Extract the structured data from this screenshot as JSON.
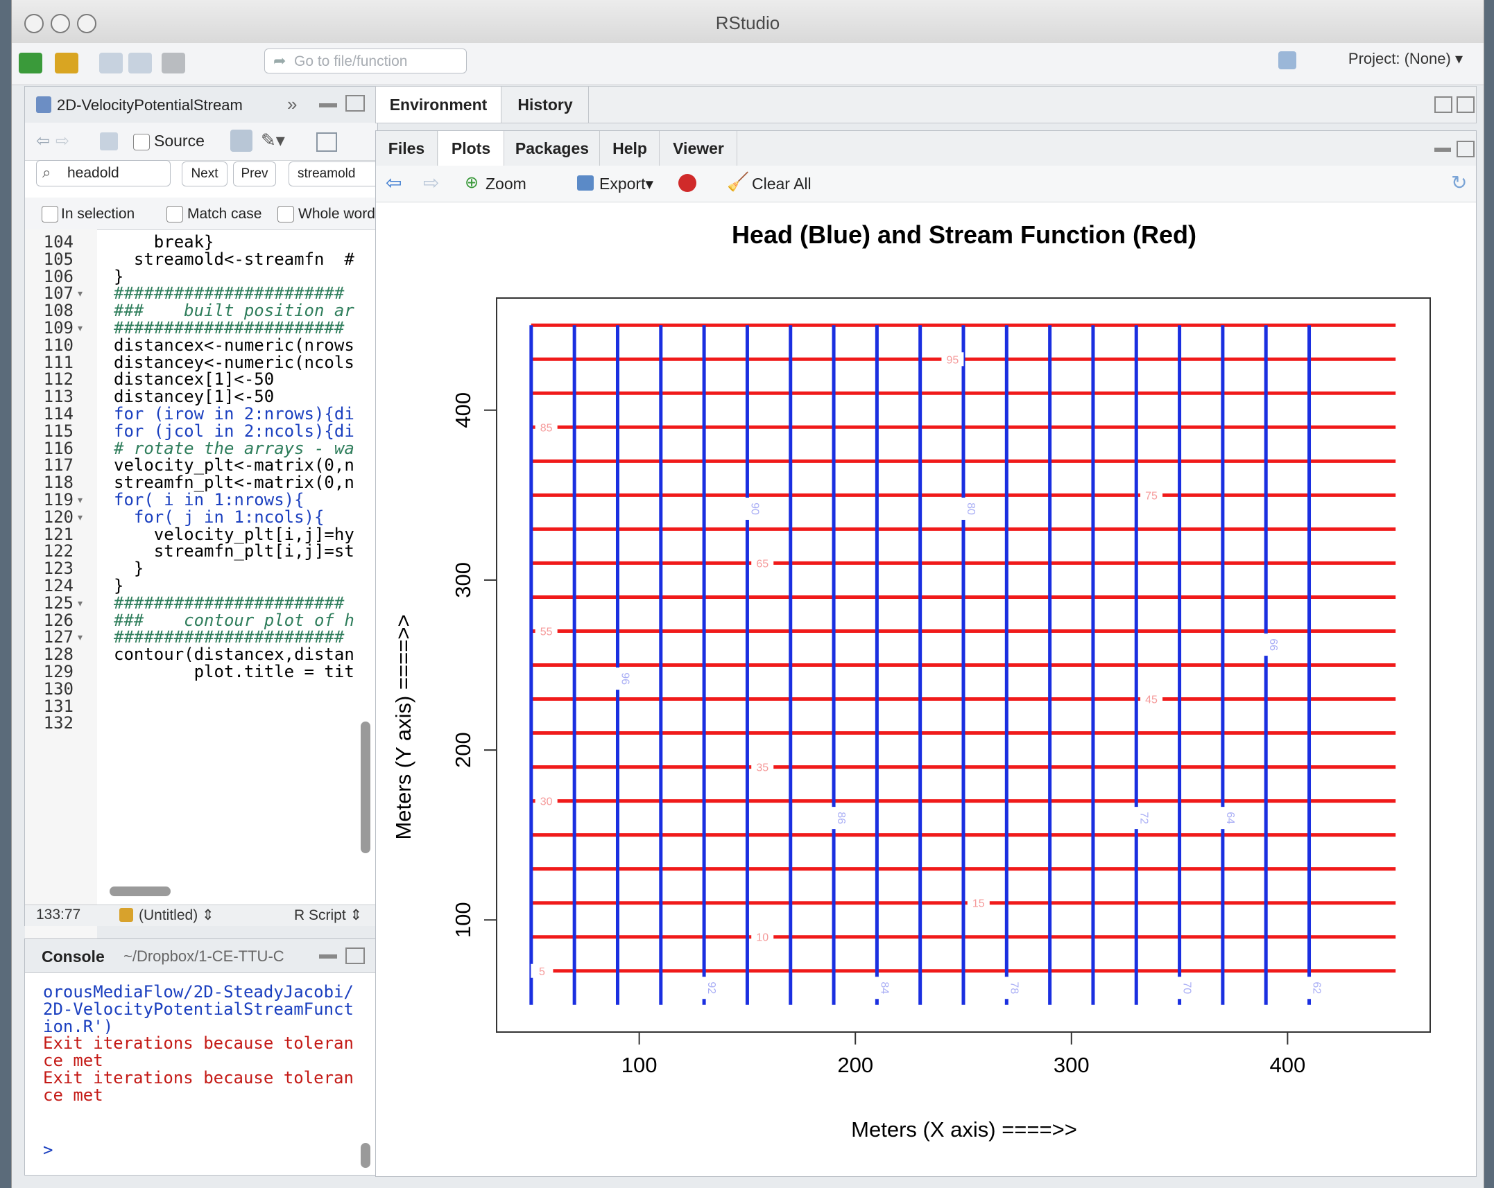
{
  "window": {
    "title": "RStudio"
  },
  "toolbar": {
    "goto_placeholder": "Go to file/function",
    "project": "Project: (None)"
  },
  "source": {
    "tab_title": "2D-VelocityPotentialStream",
    "source_label": "Source",
    "find": {
      "query": "headold",
      "next": "Next",
      "prev": "Prev",
      "replace": "streamold"
    },
    "options": {
      "in_selection": "In selection",
      "match_case": "Match case",
      "whole_word": "Whole word"
    },
    "lines": [
      {
        "n": "104",
        "text": "    break}"
      },
      {
        "n": "105",
        "text": "  streamold<-streamfn  #"
      },
      {
        "n": "106",
        "text": "}"
      },
      {
        "n": "107",
        "text": "#######################"
      },
      {
        "n": "108",
        "text": "###    built position ar"
      },
      {
        "n": "109",
        "text": "#######################"
      },
      {
        "n": "110",
        "text": "distancex<-numeric(nrows"
      },
      {
        "n": "111",
        "text": "distancey<-numeric(ncols"
      },
      {
        "n": "112",
        "text": "distancex[1]<-50"
      },
      {
        "n": "113",
        "text": "distancey[1]<-50"
      },
      {
        "n": "114",
        "text": "for (irow in 2:nrows){di"
      },
      {
        "n": "115",
        "text": "for (jcol in 2:ncols){di"
      },
      {
        "n": "116",
        "text": "# rotate the arrays - wa"
      },
      {
        "n": "117",
        "text": "velocity_plt<-matrix(0,n"
      },
      {
        "n": "118",
        "text": "streamfn_plt<-matrix(0,n"
      },
      {
        "n": "119",
        "text": "for( i in 1:nrows){"
      },
      {
        "n": "120",
        "text": "  for( j in 1:ncols){"
      },
      {
        "n": "121",
        "text": "    velocity_plt[i,j]=hy"
      },
      {
        "n": "122",
        "text": "    streamfn_plt[i,j]=st"
      },
      {
        "n": "123",
        "text": "  }"
      },
      {
        "n": "124",
        "text": "}"
      },
      {
        "n": "125",
        "text": "#######################"
      },
      {
        "n": "126",
        "text": "###    contour plot of h"
      },
      {
        "n": "127",
        "text": "#######################"
      },
      {
        "n": "128",
        "text": "contour(distancex,distan"
      },
      {
        "n": "129",
        "text": "        plot.title = tit"
      },
      {
        "n": "130",
        "text": ""
      },
      {
        "n": "131",
        "text": ""
      },
      {
        "n": "132",
        "text": ""
      }
    ],
    "status": {
      "position": "133:77",
      "context": "(Untitled)",
      "filetype": "R Script"
    }
  },
  "console": {
    "title": "Console",
    "path": "~/Dropbox/1-CE-TTU-C",
    "lines": [
      {
        "text": "orousMediaFlow/2D-SteadyJacobi/",
        "color": "#1a3fbf"
      },
      {
        "text": "2D-VelocityPotentialStreamFunct",
        "color": "#1a3fbf"
      },
      {
        "text": "ion.R')",
        "color": "#1a3fbf"
      },
      {
        "text": "Exit iterations because toleran",
        "color": "#c41a16"
      },
      {
        "text": "ce met",
        "color": "#c41a16"
      },
      {
        "text": "Exit iterations because toleran",
        "color": "#c41a16"
      },
      {
        "text": "ce met",
        "color": "#c41a16"
      }
    ],
    "prompt": ">"
  },
  "env": {
    "tabs": [
      "Environment",
      "History"
    ]
  },
  "plots": {
    "tabs": [
      "Files",
      "Plots",
      "Packages",
      "Help",
      "Viewer"
    ],
    "toolbar": {
      "zoom": "Zoom",
      "export": "Export",
      "clear": "Clear All"
    }
  },
  "chart_data": {
    "type": "contour",
    "title": "Head (Blue) and Stream Function (Red)",
    "xlabel": "Meters (X axis) ====>>",
    "ylabel": "Meters (Y axis) ====>>",
    "xlim": [
      34,
      466
    ],
    "ylim": [
      34,
      466
    ],
    "xticks": [
      100,
      200,
      300,
      400
    ],
    "yticks": [
      100,
      200,
      300,
      400
    ],
    "head_color": "#1a2fe0",
    "stream_color": "#f01a1a",
    "head_lines_x": [
      50,
      70,
      90,
      110,
      130,
      150,
      170,
      190,
      210,
      230,
      250,
      270,
      290,
      310,
      330,
      350,
      370,
      390,
      410
    ],
    "stream_lines_y": [
      70,
      90,
      110,
      130,
      150,
      170,
      190,
      210,
      230,
      250,
      270,
      290,
      310,
      330,
      350,
      370,
      390,
      410,
      430,
      450
    ],
    "head_labels": [
      {
        "x": 150,
        "y": 342,
        "text": "90"
      },
      {
        "x": 250,
        "y": 342,
        "text": "80"
      },
      {
        "x": 90,
        "y": 242,
        "text": "96"
      },
      {
        "x": 390,
        "y": 262,
        "text": "66"
      },
      {
        "x": 190,
        "y": 160,
        "text": "86"
      },
      {
        "x": 330,
        "y": 160,
        "text": "72"
      },
      {
        "x": 370,
        "y": 160,
        "text": "64"
      },
      {
        "x": 130,
        "y": 60,
        "text": "92"
      },
      {
        "x": 210,
        "y": 60,
        "text": "84"
      },
      {
        "x": 270,
        "y": 60,
        "text": "78"
      },
      {
        "x": 350,
        "y": 60,
        "text": "70"
      },
      {
        "x": 410,
        "y": 60,
        "text": "62"
      }
    ],
    "stream_labels": [
      {
        "x": 245,
        "y": 430,
        "text": "95"
      },
      {
        "x": 57,
        "y": 390,
        "text": "85"
      },
      {
        "x": 337,
        "y": 350,
        "text": "75"
      },
      {
        "x": 157,
        "y": 310,
        "text": "65"
      },
      {
        "x": 57,
        "y": 270,
        "text": "55"
      },
      {
        "x": 337,
        "y": 230,
        "text": "45"
      },
      {
        "x": 157,
        "y": 190,
        "text": "35"
      },
      {
        "x": 57,
        "y": 170,
        "text": "30"
      },
      {
        "x": 257,
        "y": 110,
        "text": "15"
      },
      {
        "x": 157,
        "y": 90,
        "text": "10"
      },
      {
        "x": 55,
        "y": 70,
        "text": "5"
      }
    ]
  }
}
